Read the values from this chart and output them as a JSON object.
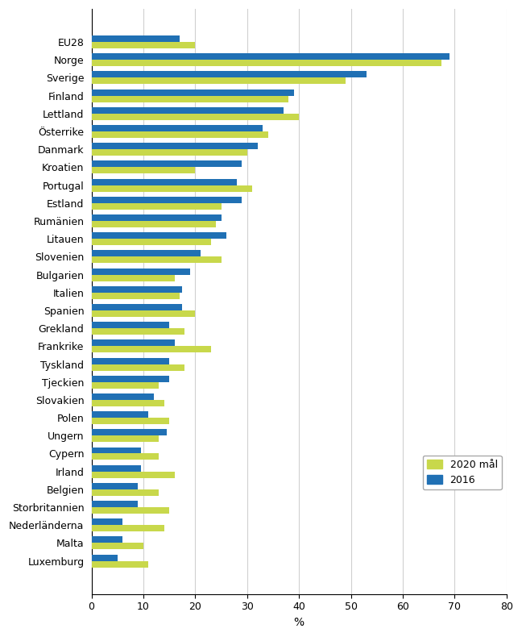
{
  "countries": [
    "EU28",
    "Norge",
    "Sverige",
    "Finland",
    "Lettland",
    "Österrike",
    "Danmark",
    "Kroatien",
    "Portugal",
    "Estland",
    "Rumänien",
    "Litauen",
    "Slovenien",
    "Bulgarien",
    "Italien",
    "Spanien",
    "Grekland",
    "Frankrike",
    "Tyskland",
    "Tjeckien",
    "Slovakien",
    "Polen",
    "Ungern",
    "Cypern",
    "Irland",
    "Belgien",
    "Storbritannien",
    "Nederländerna",
    "Malta",
    "Luxemburg"
  ],
  "goal_2020": [
    20,
    67.5,
    49,
    38,
    40,
    34,
    30,
    20,
    31,
    25,
    24,
    23,
    25,
    16,
    17,
    20,
    18,
    23,
    18,
    13,
    14,
    15,
    13,
    13,
    16,
    13,
    15,
    14,
    10,
    11
  ],
  "val_2016": [
    17,
    69,
    53,
    39,
    37,
    33,
    32,
    29,
    28,
    29,
    25,
    26,
    21,
    19,
    17.5,
    17.5,
    15,
    16,
    15,
    15,
    12,
    11,
    14.5,
    9.5,
    9.5,
    9,
    9,
    6,
    6,
    5
  ],
  "color_2020": "#c8d84b",
  "color_2016": "#2070b4",
  "xlabel": "%",
  "xlim": [
    0,
    80
  ],
  "xticks": [
    0,
    10,
    20,
    30,
    40,
    50,
    60,
    70,
    80
  ],
  "legend_labels": [
    "2020 mål",
    "2016"
  ]
}
